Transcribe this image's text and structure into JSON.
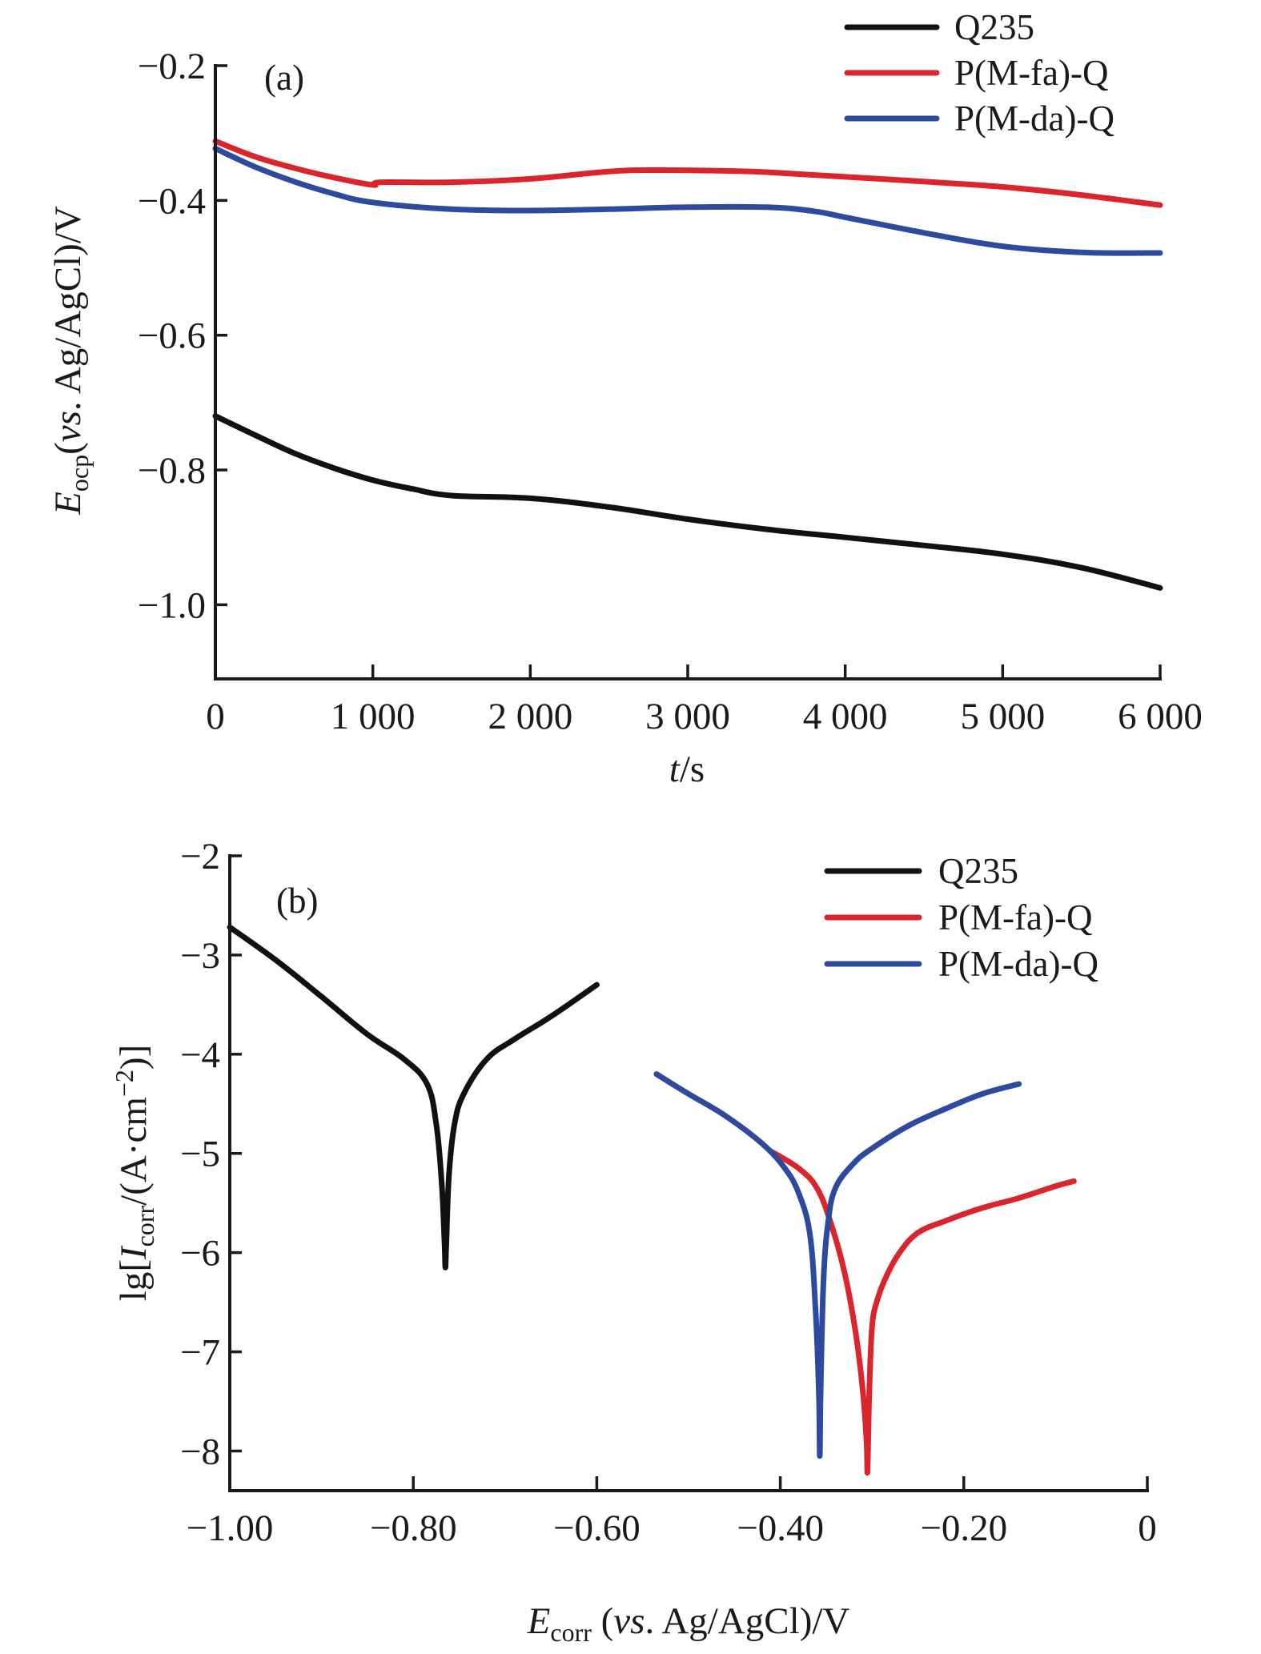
{
  "chart_data": [
    {
      "id": "a",
      "type": "line",
      "panel_label": "(a)",
      "title": "",
      "xlabel": {
        "italic": "t",
        "rest": "/s"
      },
      "ylabel": {
        "main": "E",
        "sub": "ocp",
        "open": "(",
        "italic": "vs",
        "rest": ". Ag/AgCl)/V"
      },
      "xlim": [
        0,
        6000
      ],
      "ylim": [
        -1.11,
        -0.2
      ],
      "xticks": [
        0,
        1000,
        2000,
        3000,
        4000,
        5000,
        6000
      ],
      "xtick_labels": [
        "0",
        "1 000",
        "2 000",
        "3 000",
        "4 000",
        "5 000",
        "6 000"
      ],
      "yticks": [
        -0.2,
        -0.4,
        -0.6,
        -0.8,
        -1.0
      ],
      "ytick_labels": [
        "−0.2",
        "−0.4",
        "−0.6",
        "−0.8",
        "−1.0"
      ],
      "grid": false,
      "legend_position": "top-right",
      "series": [
        {
          "name": "Q235",
          "color": "#111111",
          "x": [
            0,
            250,
            500,
            750,
            1000,
            1250,
            1500,
            2000,
            2500,
            3000,
            3500,
            4000,
            4500,
            5000,
            5500,
            6000
          ],
          "y": [
            -0.72,
            -0.748,
            -0.775,
            -0.797,
            -0.815,
            -0.828,
            -0.838,
            -0.842,
            -0.855,
            -0.873,
            -0.888,
            -0.9,
            -0.912,
            -0.925,
            -0.945,
            -0.975
          ]
        },
        {
          "name": "P(M-fa)-Q",
          "color": "#d9252b",
          "x": [
            0,
            250,
            500,
            750,
            1000,
            1050,
            1500,
            2000,
            2500,
            2800,
            3200,
            3500,
            4000,
            4500,
            5000,
            5500,
            6000
          ],
          "y": [
            -0.312,
            -0.335,
            -0.352,
            -0.366,
            -0.377,
            -0.373,
            -0.373,
            -0.368,
            -0.357,
            -0.355,
            -0.356,
            -0.358,
            -0.365,
            -0.372,
            -0.38,
            -0.392,
            -0.407
          ]
        },
        {
          "name": "P(M-da)-Q",
          "color": "#2e4a9e",
          "x": [
            0,
            250,
            500,
            750,
            1000,
            1500,
            2000,
            2500,
            3000,
            3500,
            3800,
            4000,
            4500,
            5000,
            5500,
            6000
          ],
          "y": [
            -0.323,
            -0.35,
            -0.372,
            -0.39,
            -0.403,
            -0.413,
            -0.415,
            -0.413,
            -0.41,
            -0.41,
            -0.416,
            -0.425,
            -0.448,
            -0.468,
            -0.477,
            -0.478
          ]
        }
      ]
    },
    {
      "id": "b",
      "type": "line",
      "panel_label": "(b)",
      "title": "",
      "xlabel": {
        "main": "E",
        "sub": "corr",
        "open": " (",
        "italic": "vs",
        "rest": ". Ag/AgCl)/V"
      },
      "ylabel": {
        "pre": "lg[",
        "main": "I",
        "sub": "corr",
        "rest": "/(A·cm",
        "sup": "−2",
        "close": ")]"
      },
      "xlim": [
        -1.0,
        0.0
      ],
      "ylim": [
        -8.4,
        -2.0
      ],
      "xticks": [
        -1.0,
        -0.8,
        -0.6,
        -0.4,
        -0.2,
        0.0
      ],
      "xtick_labels": [
        "−1.00",
        "−0.80",
        "−0.60",
        "−0.40",
        "−0.20",
        "0"
      ],
      "yticks": [
        -2,
        -3,
        -4,
        -5,
        -6,
        -7,
        -8
      ],
      "ytick_labels": [
        "−2",
        "−3",
        "−4",
        "−5",
        "−6",
        "−7",
        "−8"
      ],
      "grid": false,
      "legend_position": "top-right",
      "series": [
        {
          "name": "Q235",
          "color": "#111111",
          "x": [
            -1.0,
            -0.95,
            -0.9,
            -0.85,
            -0.81,
            -0.785,
            -0.775,
            -0.769,
            -0.766,
            -0.765,
            -0.764,
            -0.761,
            -0.755,
            -0.745,
            -0.72,
            -0.69,
            -0.65,
            -0.6
          ],
          "y": [
            -2.72,
            -3.05,
            -3.42,
            -3.8,
            -4.05,
            -4.3,
            -4.7,
            -5.3,
            -5.9,
            -6.15,
            -5.9,
            -5.2,
            -4.7,
            -4.4,
            -4.05,
            -3.85,
            -3.62,
            -3.3
          ]
        },
        {
          "name": "P(M-fa)-Q",
          "color": "#d9252b",
          "x": [
            -0.41,
            -0.38,
            -0.36,
            -0.345,
            -0.33,
            -0.318,
            -0.31,
            -0.306,
            -0.305,
            -0.303,
            -0.3,
            -0.295,
            -0.285,
            -0.27,
            -0.25,
            -0.22,
            -0.18,
            -0.14,
            -0.1,
            -0.08
          ],
          "y": [
            -4.98,
            -5.15,
            -5.35,
            -5.7,
            -6.2,
            -6.8,
            -7.4,
            -7.9,
            -8.2,
            -7.4,
            -6.75,
            -6.5,
            -6.25,
            -6.0,
            -5.8,
            -5.68,
            -5.55,
            -5.45,
            -5.33,
            -5.28
          ]
        },
        {
          "name": "P(M-da)-Q",
          "color": "#2e4a9e",
          "x": [
            -0.535,
            -0.5,
            -0.46,
            -0.42,
            -0.395,
            -0.38,
            -0.368,
            -0.362,
            -0.358,
            -0.357,
            -0.356,
            -0.353,
            -0.348,
            -0.34,
            -0.32,
            -0.3,
            -0.26,
            -0.22,
            -0.18,
            -0.14
          ],
          "y": [
            -4.2,
            -4.4,
            -4.62,
            -4.9,
            -5.15,
            -5.4,
            -5.8,
            -6.5,
            -7.4,
            -8.05,
            -7.4,
            -6.3,
            -5.7,
            -5.35,
            -5.1,
            -4.95,
            -4.72,
            -4.55,
            -4.4,
            -4.3
          ]
        }
      ]
    }
  ]
}
